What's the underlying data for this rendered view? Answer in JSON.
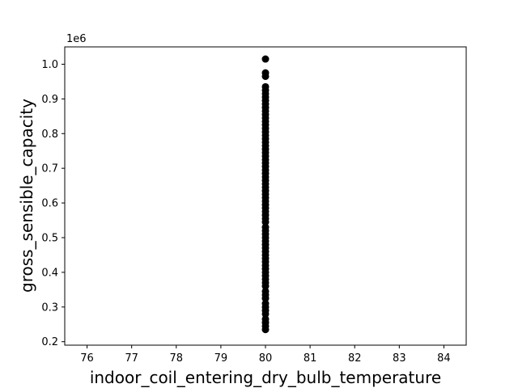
{
  "chart_data": {
    "type": "scatter",
    "title": "",
    "xlabel": "indoor_coil_entering_dry_bulb_temperature",
    "ylabel": "gross_sensible_capacity",
    "y_offset_label": "1e6",
    "xlim": [
      75.5,
      84.5
    ],
    "ylim": [
      0.19,
      1.05
    ],
    "x_ticks": [
      76,
      77,
      78,
      79,
      80,
      81,
      82,
      83,
      84
    ],
    "y_ticks": [
      0.2,
      0.3,
      0.4,
      0.5,
      0.6,
      0.7,
      0.8,
      0.9,
      1.0
    ],
    "x_tick_labels": [
      "76",
      "77",
      "78",
      "79",
      "80",
      "81",
      "82",
      "83",
      "84"
    ],
    "y_tick_labels": [
      "0.2",
      "0.3",
      "0.4",
      "0.5",
      "0.6",
      "0.7",
      "0.8",
      "0.9",
      "1.0"
    ],
    "y_scale_multiplier": 1000000,
    "grid": false,
    "marker_color": "#000000",
    "points": [
      {
        "x": 80,
        "y": 0.235
      },
      {
        "x": 80,
        "y": 0.245
      },
      {
        "x": 80,
        "y": 0.255
      },
      {
        "x": 80,
        "y": 0.265
      },
      {
        "x": 80,
        "y": 0.28
      },
      {
        "x": 80,
        "y": 0.29
      },
      {
        "x": 80,
        "y": 0.3
      },
      {
        "x": 80,
        "y": 0.31
      },
      {
        "x": 80,
        "y": 0.325
      },
      {
        "x": 80,
        "y": 0.335
      },
      {
        "x": 80,
        "y": 0.345
      },
      {
        "x": 80,
        "y": 0.36
      },
      {
        "x": 80,
        "y": 0.37
      },
      {
        "x": 80,
        "y": 0.38
      },
      {
        "x": 80,
        "y": 0.39
      },
      {
        "x": 80,
        "y": 0.4
      },
      {
        "x": 80,
        "y": 0.41
      },
      {
        "x": 80,
        "y": 0.42
      },
      {
        "x": 80,
        "y": 0.43
      },
      {
        "x": 80,
        "y": 0.44
      },
      {
        "x": 80,
        "y": 0.45
      },
      {
        "x": 80,
        "y": 0.46
      },
      {
        "x": 80,
        "y": 0.47
      },
      {
        "x": 80,
        "y": 0.48
      },
      {
        "x": 80,
        "y": 0.49
      },
      {
        "x": 80,
        "y": 0.5
      },
      {
        "x": 80,
        "y": 0.51
      },
      {
        "x": 80,
        "y": 0.52
      },
      {
        "x": 80,
        "y": 0.53
      },
      {
        "x": 80,
        "y": 0.545
      },
      {
        "x": 80,
        "y": 0.555
      },
      {
        "x": 80,
        "y": 0.565
      },
      {
        "x": 80,
        "y": 0.575
      },
      {
        "x": 80,
        "y": 0.585
      },
      {
        "x": 80,
        "y": 0.595
      },
      {
        "x": 80,
        "y": 0.605
      },
      {
        "x": 80,
        "y": 0.615
      },
      {
        "x": 80,
        "y": 0.625
      },
      {
        "x": 80,
        "y": 0.635
      },
      {
        "x": 80,
        "y": 0.645
      },
      {
        "x": 80,
        "y": 0.655
      },
      {
        "x": 80,
        "y": 0.665
      },
      {
        "x": 80,
        "y": 0.675
      },
      {
        "x": 80,
        "y": 0.685
      },
      {
        "x": 80,
        "y": 0.695
      },
      {
        "x": 80,
        "y": 0.705
      },
      {
        "x": 80,
        "y": 0.715
      },
      {
        "x": 80,
        "y": 0.725
      },
      {
        "x": 80,
        "y": 0.735
      },
      {
        "x": 80,
        "y": 0.745
      },
      {
        "x": 80,
        "y": 0.755
      },
      {
        "x": 80,
        "y": 0.765
      },
      {
        "x": 80,
        "y": 0.775
      },
      {
        "x": 80,
        "y": 0.785
      },
      {
        "x": 80,
        "y": 0.795
      },
      {
        "x": 80,
        "y": 0.805
      },
      {
        "x": 80,
        "y": 0.815
      },
      {
        "x": 80,
        "y": 0.825
      },
      {
        "x": 80,
        "y": 0.835
      },
      {
        "x": 80,
        "y": 0.845
      },
      {
        "x": 80,
        "y": 0.855
      },
      {
        "x": 80,
        "y": 0.865
      },
      {
        "x": 80,
        "y": 0.875
      },
      {
        "x": 80,
        "y": 0.885
      },
      {
        "x": 80,
        "y": 0.895
      },
      {
        "x": 80,
        "y": 0.905
      },
      {
        "x": 80,
        "y": 0.915
      },
      {
        "x": 80,
        "y": 0.925
      },
      {
        "x": 80,
        "y": 0.935
      },
      {
        "x": 80,
        "y": 0.965
      },
      {
        "x": 80,
        "y": 0.975
      },
      {
        "x": 80,
        "y": 1.015
      }
    ]
  }
}
